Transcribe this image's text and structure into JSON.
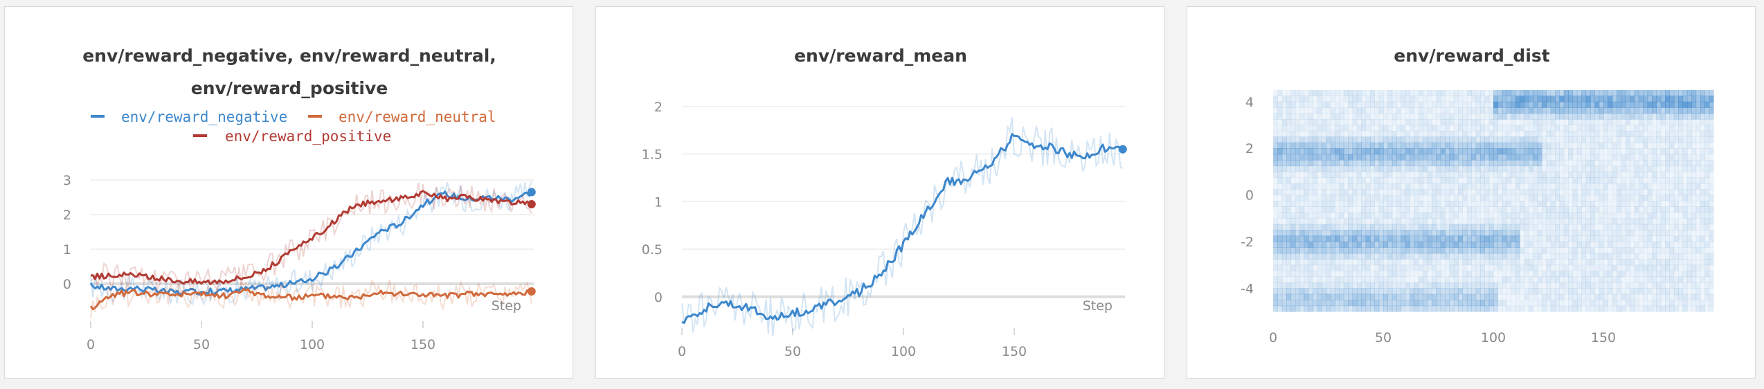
{
  "chart_data": [
    {
      "type": "line",
      "title_lines": [
        "env/reward_negative, env/reward_neutral,",
        "env/reward_positive"
      ],
      "xlabel": "Step",
      "ylabel": "",
      "xlim": [
        0,
        200
      ],
      "ylim": [
        -1,
        3.2
      ],
      "x_ticks": [
        0,
        50,
        100,
        150
      ],
      "y_ticks": [
        0,
        1,
        2,
        3
      ],
      "grid": true,
      "legend_position": "top",
      "x": [
        0,
        10,
        20,
        30,
        40,
        50,
        60,
        70,
        80,
        90,
        100,
        110,
        120,
        130,
        140,
        150,
        160,
        170,
        180,
        190,
        199
      ],
      "series": [
        {
          "name": "env/reward_negative",
          "color": "#3d87cc",
          "values": [
            -0.05,
            -0.15,
            -0.12,
            -0.2,
            -0.25,
            -0.22,
            -0.2,
            -0.15,
            -0.1,
            0.0,
            0.15,
            0.45,
            0.95,
            1.5,
            1.75,
            2.3,
            2.6,
            2.45,
            2.5,
            2.45,
            2.65
          ]
        },
        {
          "name": "env/reward_neutral",
          "color": "#d0693b",
          "values": [
            -0.7,
            -0.3,
            -0.25,
            -0.3,
            -0.3,
            -0.3,
            -0.35,
            -0.2,
            -0.35,
            -0.4,
            -0.35,
            -0.35,
            -0.4,
            -0.2,
            -0.3,
            -0.3,
            -0.35,
            -0.3,
            -0.3,
            -0.3,
            -0.22
          ]
        },
        {
          "name": "env/reward_positive",
          "color": "#b13a33",
          "values": [
            0.2,
            0.25,
            0.25,
            0.15,
            0.1,
            0.05,
            0.1,
            0.2,
            0.45,
            0.9,
            1.3,
            1.8,
            2.3,
            2.35,
            2.5,
            2.6,
            2.45,
            2.5,
            2.4,
            2.35,
            2.3
          ]
        }
      ]
    },
    {
      "type": "line",
      "title_lines": [
        "env/reward_mean"
      ],
      "xlabel": "Step",
      "ylabel": "",
      "xlim": [
        0,
        200
      ],
      "ylim": [
        -0.3,
        2.1
      ],
      "x_ticks": [
        0,
        50,
        100,
        150
      ],
      "y_ticks": [
        0,
        0.5,
        1,
        1.5,
        2
      ],
      "grid": true,
      "x": [
        0,
        10,
        20,
        30,
        40,
        50,
        60,
        70,
        80,
        90,
        100,
        110,
        120,
        130,
        140,
        145,
        150,
        160,
        170,
        180,
        190,
        199
      ],
      "series": [
        {
          "name": "env/reward_mean",
          "color": "#3d87cc",
          "values": [
            -0.25,
            -0.12,
            -0.05,
            -0.12,
            -0.22,
            -0.18,
            -0.12,
            -0.05,
            0.05,
            0.25,
            0.55,
            0.9,
            1.2,
            1.25,
            1.4,
            1.55,
            1.7,
            1.6,
            1.55,
            1.45,
            1.55,
            1.55
          ]
        }
      ]
    },
    {
      "type": "heatmap",
      "title_lines": [
        "env/reward_dist"
      ],
      "xlabel": "",
      "xlim": [
        0,
        200
      ],
      "ylim": [
        -5,
        4.5
      ],
      "x_ticks": [
        0,
        50,
        100,
        150
      ],
      "y_ticks": [
        4,
        2,
        0,
        -2,
        -4
      ],
      "color": "#3d87cc",
      "bands": [
        {
          "y_center": 4,
          "x_from": 100,
          "x_to": 200,
          "intensity": 0.75
        },
        {
          "y_center": 1.8,
          "x_from": 0,
          "x_to": 120,
          "intensity": 0.55
        },
        {
          "y_center": -2,
          "x_from": 0,
          "x_to": 110,
          "intensity": 0.55
        },
        {
          "y_center": -4.5,
          "x_from": 0,
          "x_to": 100,
          "intensity": 0.35
        }
      ]
    }
  ]
}
